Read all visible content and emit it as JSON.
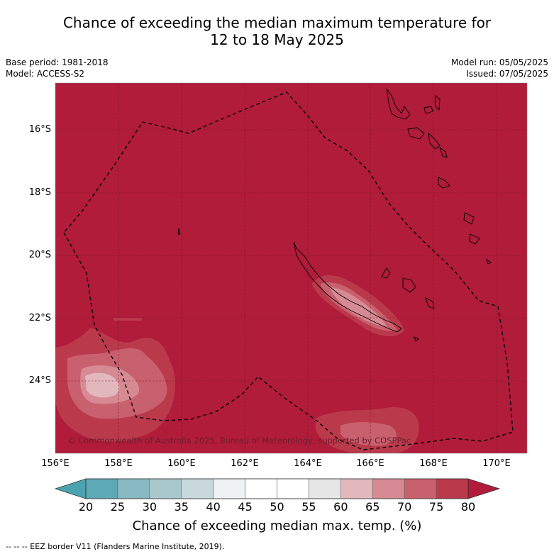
{
  "title_line1": "Chance of exceeding the median maximum temperature for",
  "title_line2": "12 to 18 May 2025",
  "meta_left": [
    "Base period: 1981-2018",
    "Model: ACCESS-S2"
  ],
  "meta_right": [
    "Model run: 05/05/2025",
    "Issued: 07/05/2025"
  ],
  "map": {
    "lon_range": [
      156,
      171
    ],
    "lat_range": [
      -26.5,
      -14.7
    ],
    "lon_ticks": [
      "156°E",
      "158°E",
      "160°E",
      "162°E",
      "164°E",
      "166°E",
      "168°E",
      "170°E"
    ],
    "lat_ticks": [
      "16°S",
      "18°S",
      "20°S",
      "22°S",
      "24°S"
    ],
    "background_category": "75-80",
    "copyright": "© Commonwealth of Australia 2025, Bureau of Meteorology, supported by COSPPac"
  },
  "colorbar": {
    "ticks": [
      "20",
      "25",
      "30",
      "35",
      "40",
      "45",
      "50",
      "55",
      "60",
      "65",
      "70",
      "75",
      "80"
    ],
    "colors": [
      "#5ea9b6",
      "#89b9c3",
      "#a8c8cc",
      "#c8d8dc",
      "#eef2f4",
      "#ffffff",
      "#ffffff",
      "#e6e6e6",
      "#e3b8bd",
      "#d68a93",
      "#c9606d",
      "#ba3a4c",
      "#b01c3a"
    ],
    "under_color": "#4ba3b0",
    "over_color": "#b01c3a",
    "label": "Chance of exceeding median max. temp. (%)"
  },
  "legend_footer": "--  --  -- EEZ border V11 (Flanders Marine Institute, 2019)."
}
